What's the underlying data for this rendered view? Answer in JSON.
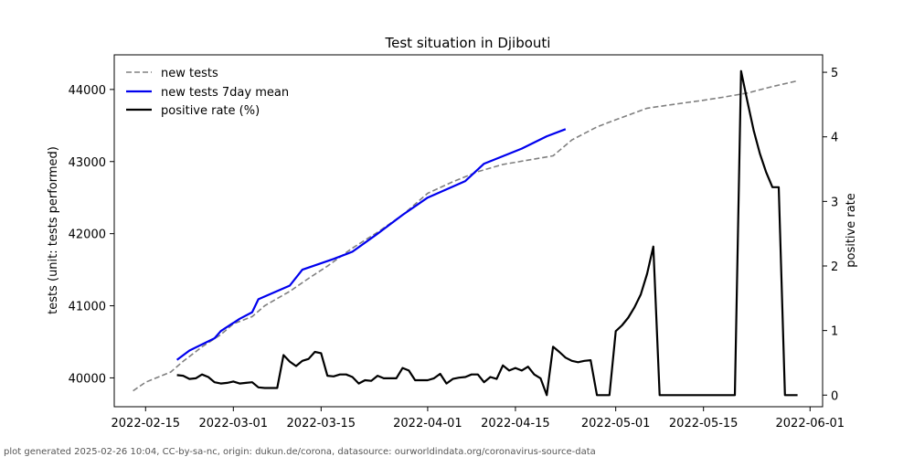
{
  "footer": "plot generated 2025-02-26 10:04, CC-by-sa-nc, origin: dukun.de/corona, datasource: ourworldindata.org/coronavirus-source-data",
  "colors": {
    "new_tests": "#808080",
    "mean": "#0000ee",
    "positive": "#000000"
  },
  "chart_data": {
    "type": "line",
    "title": "Test situation in Djibouti",
    "ylabel": "tests (unit: tests performed)",
    "y2label": "positive rate",
    "xlim": [
      "2022-02-10",
      "2022-06-03"
    ],
    "ylim": [
      39600,
      44480
    ],
    "y2lim": [
      -0.18,
      5.27
    ],
    "x_ticks": [
      "2022-02-15",
      "2022-03-01",
      "2022-03-15",
      "2022-04-01",
      "2022-04-15",
      "2022-05-01",
      "2022-05-15",
      "2022-06-01"
    ],
    "y_ticks": [
      40000,
      41000,
      42000,
      43000,
      44000
    ],
    "y2_ticks": [
      0,
      1,
      2,
      3,
      4,
      5
    ],
    "grid": false,
    "legend": "top-left",
    "series": [
      {
        "name": "new tests",
        "axis": "left",
        "style": "dashed",
        "x": [
          "2022-02-13",
          "2022-02-15",
          "2022-02-19",
          "2022-02-21",
          "2022-02-24",
          "2022-02-27",
          "2022-03-01",
          "2022-03-04",
          "2022-03-06",
          "2022-03-10",
          "2022-03-13",
          "2022-03-16",
          "2022-03-20",
          "2022-03-24",
          "2022-03-28",
          "2022-04-01",
          "2022-04-05",
          "2022-04-09",
          "2022-04-13",
          "2022-04-17",
          "2022-04-21",
          "2022-04-24",
          "2022-04-28",
          "2022-05-01",
          "2022-05-06",
          "2022-05-10",
          "2022-05-15",
          "2022-05-18",
          "2022-05-22",
          "2022-05-26",
          "2022-05-30"
        ],
        "values": [
          39820,
          39940,
          40080,
          40230,
          40430,
          40600,
          40750,
          40850,
          41000,
          41200,
          41380,
          41550,
          41800,
          42020,
          42260,
          42560,
          42720,
          42860,
          42960,
          43020,
          43080,
          43300,
          43480,
          43580,
          43740,
          43790,
          43850,
          43890,
          43950,
          44040,
          44120
        ]
      },
      {
        "name": "new tests 7day mean",
        "axis": "left",
        "style": "solid",
        "x": [
          "2022-02-20",
          "2022-02-22",
          "2022-02-26",
          "2022-02-27",
          "2022-03-02",
          "2022-03-04",
          "2022-03-05",
          "2022-03-10",
          "2022-03-12",
          "2022-03-17",
          "2022-03-20",
          "2022-03-24",
          "2022-03-28",
          "2022-04-01",
          "2022-04-07",
          "2022-04-10",
          "2022-04-16",
          "2022-04-20",
          "2022-04-23"
        ],
        "values": [
          40250,
          40380,
          40550,
          40650,
          40820,
          40910,
          41090,
          41280,
          41500,
          41650,
          41750,
          42000,
          42260,
          42500,
          42730,
          42970,
          43180,
          43350,
          43450
        ]
      },
      {
        "name": "positive rate (%)",
        "axis": "right",
        "style": "solid",
        "x": [
          "2022-02-20",
          "2022-02-21",
          "2022-02-22",
          "2022-02-23",
          "2022-02-24",
          "2022-02-25",
          "2022-02-26",
          "2022-02-27",
          "2022-02-28",
          "2022-03-01",
          "2022-03-02",
          "2022-03-03",
          "2022-03-04",
          "2022-03-05",
          "2022-03-06",
          "2022-03-07",
          "2022-03-08",
          "2022-03-09",
          "2022-03-10",
          "2022-03-11",
          "2022-03-12",
          "2022-03-13",
          "2022-03-14",
          "2022-03-15",
          "2022-03-16",
          "2022-03-17",
          "2022-03-18",
          "2022-03-19",
          "2022-03-20",
          "2022-03-21",
          "2022-03-22",
          "2022-03-23",
          "2022-03-24",
          "2022-03-25",
          "2022-03-26",
          "2022-03-27",
          "2022-03-28",
          "2022-03-29",
          "2022-03-30",
          "2022-03-31",
          "2022-04-01",
          "2022-04-02",
          "2022-04-03",
          "2022-04-04",
          "2022-04-05",
          "2022-04-06",
          "2022-04-07",
          "2022-04-08",
          "2022-04-09",
          "2022-04-10",
          "2022-04-11",
          "2022-04-12",
          "2022-04-13",
          "2022-04-14",
          "2022-04-15",
          "2022-04-16",
          "2022-04-17",
          "2022-04-18",
          "2022-04-19",
          "2022-04-20",
          "2022-04-21",
          "2022-04-22",
          "2022-04-23",
          "2022-04-24",
          "2022-04-25",
          "2022-04-26",
          "2022-04-27",
          "2022-04-28",
          "2022-04-29",
          "2022-04-30",
          "2022-05-01",
          "2022-05-02",
          "2022-05-03",
          "2022-05-04",
          "2022-05-05",
          "2022-05-06",
          "2022-05-07",
          "2022-05-08",
          "2022-05-09",
          "2022-05-10",
          "2022-05-11",
          "2022-05-12",
          "2022-05-13",
          "2022-05-14",
          "2022-05-15",
          "2022-05-16",
          "2022-05-17",
          "2022-05-18",
          "2022-05-19",
          "2022-05-20",
          "2022-05-21",
          "2022-05-22",
          "2022-05-23",
          "2022-05-24",
          "2022-05-25",
          "2022-05-26",
          "2022-05-27",
          "2022-05-28",
          "2022-05-29",
          "2022-05-30"
        ],
        "values": [
          0.31,
          0.3,
          0.25,
          0.26,
          0.32,
          0.28,
          0.2,
          0.18,
          0.19,
          0.21,
          0.18,
          0.19,
          0.2,
          0.12,
          0.11,
          0.11,
          0.11,
          0.62,
          0.52,
          0.45,
          0.53,
          0.56,
          0.67,
          0.65,
          0.3,
          0.29,
          0.32,
          0.32,
          0.28,
          0.18,
          0.23,
          0.22,
          0.3,
          0.26,
          0.26,
          0.26,
          0.42,
          0.38,
          0.23,
          0.23,
          0.23,
          0.26,
          0.33,
          0.18,
          0.25,
          0.27,
          0.28,
          0.32,
          0.32,
          0.2,
          0.28,
          0.25,
          0.46,
          0.38,
          0.42,
          0.38,
          0.44,
          0.32,
          0.26,
          0.0,
          0.75,
          0.67,
          0.58,
          0.53,
          0.51,
          0.53,
          0.54,
          0.0,
          0.0,
          0.0,
          0.99,
          1.08,
          1.2,
          1.36,
          1.56,
          1.88,
          2.3,
          0.0,
          0.0,
          0.0,
          0.0,
          0.0,
          0.0,
          0.0,
          0.0,
          0.0,
          0.0,
          0.0,
          0.0,
          0.0,
          5.02,
          4.55,
          4.1,
          3.74,
          3.45,
          3.22,
          3.22,
          0.0,
          0.0,
          0.0
        ]
      }
    ]
  }
}
